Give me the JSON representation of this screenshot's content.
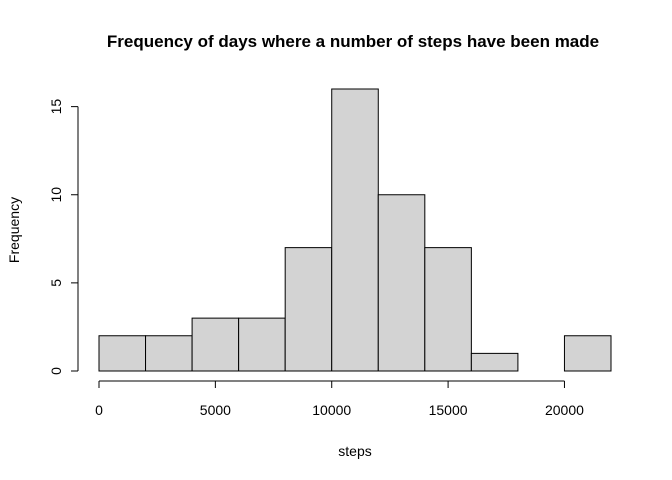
{
  "chart_data": {
    "type": "bar",
    "title": "Frequency of days where a number of steps have been made",
    "xlabel": "steps",
    "ylabel": "Frequency",
    "bins": [
      [
        0,
        2000
      ],
      [
        2000,
        4000
      ],
      [
        4000,
        6000
      ],
      [
        6000,
        8000
      ],
      [
        8000,
        10000
      ],
      [
        10000,
        12000
      ],
      [
        12000,
        14000
      ],
      [
        14000,
        16000
      ],
      [
        16000,
        18000
      ],
      [
        18000,
        20000
      ],
      [
        20000,
        22000
      ]
    ],
    "values": [
      2,
      2,
      3,
      3,
      7,
      16,
      10,
      7,
      1,
      0,
      2
    ],
    "xlim": [
      0,
      22000
    ],
    "ylim": [
      0,
      16
    ],
    "x_ticks": [
      0,
      5000,
      10000,
      15000,
      20000
    ],
    "x_tick_labels": [
      "0",
      "5000",
      "10000",
      "15000",
      "20000"
    ],
    "y_ticks": [
      0,
      5,
      10,
      15
    ],
    "y_tick_labels": [
      "0",
      "5",
      "10",
      "15"
    ],
    "grid": false,
    "legend": "none",
    "colors": {
      "bar_fill": "#d3d3d3",
      "bar_stroke": "#000000",
      "axis": "#000000",
      "background": "#ffffff"
    }
  }
}
